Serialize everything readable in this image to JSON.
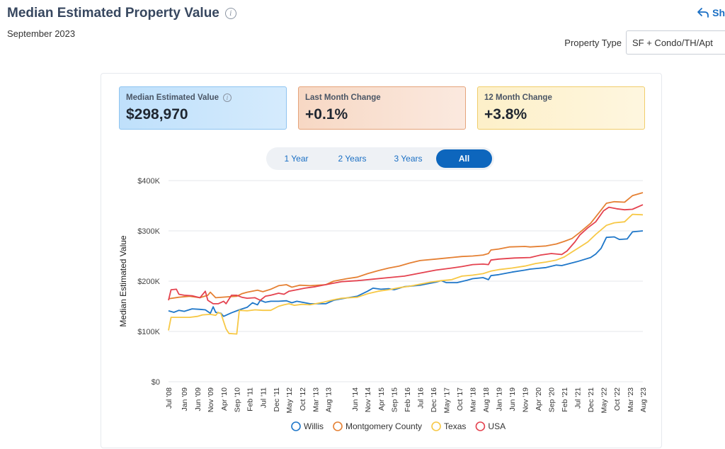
{
  "header": {
    "title": "Median Estimated Property Value",
    "info_icon": "i",
    "subtitle": "September 2023",
    "share_label": "Sh"
  },
  "property_type": {
    "label": "Property Type",
    "value": "SF + Condo/TH/Apt"
  },
  "cards": [
    {
      "label": "Median Estimated Value",
      "value": "$298,970"
    },
    {
      "label": "Last Month Change",
      "value": "+0.1%"
    },
    {
      "label": "12 Month Change",
      "value": "+3.8%"
    }
  ],
  "range_buttons": [
    "1 Year",
    "2 Years",
    "3 Years",
    "All"
  ],
  "active_range": "All",
  "chart_data": {
    "type": "line",
    "title": "Median Estimated Property Value",
    "ylabel": "Median Estimated Value",
    "xlabel": "",
    "ylim": [
      0,
      400000
    ],
    "y_ticks": [
      0,
      100000,
      200000,
      300000,
      400000
    ],
    "y_tick_labels": [
      "$0",
      "$100K",
      "$200K",
      "$300K",
      "$400K"
    ],
    "x_start": 2008.5,
    "x_end": 2023.58,
    "x_ticks": [
      {
        "label": "Jul '08",
        "x": 2008.5
      },
      {
        "label": "Jan '09",
        "x": 2009.0
      },
      {
        "label": "Jun '09",
        "x": 2009.42
      },
      {
        "label": "Nov '09",
        "x": 2009.83
      },
      {
        "label": "Apr '10",
        "x": 2010.25
      },
      {
        "label": "Sep '10",
        "x": 2010.67
      },
      {
        "label": "Feb '11",
        "x": 2011.08
      },
      {
        "label": "Jul '11",
        "x": 2011.5
      },
      {
        "label": "Dec '11",
        "x": 2011.92
      },
      {
        "label": "May '12",
        "x": 2012.33
      },
      {
        "label": "Oct '12",
        "x": 2012.75
      },
      {
        "label": "Mar '13",
        "x": 2013.17
      },
      {
        "label": "Aug '13",
        "x": 2013.58
      },
      {
        "label": "Jun '14",
        "x": 2014.42
      },
      {
        "label": "Nov '14",
        "x": 2014.83
      },
      {
        "label": "Apr '15",
        "x": 2015.25
      },
      {
        "label": "Sep '15",
        "x": 2015.67
      },
      {
        "label": "Feb '16",
        "x": 2016.08
      },
      {
        "label": "Jul '16",
        "x": 2016.5
      },
      {
        "label": "Dec '16",
        "x": 2016.92
      },
      {
        "label": "May '17",
        "x": 2017.33
      },
      {
        "label": "Oct '17",
        "x": 2017.75
      },
      {
        "label": "Mar '18",
        "x": 2018.17
      },
      {
        "label": "Aug '18",
        "x": 2018.58
      },
      {
        "label": "Jan '19",
        "x": 2019.0
      },
      {
        "label": "Jun '19",
        "x": 2019.42
      },
      {
        "label": "Nov '19",
        "x": 2019.83
      },
      {
        "label": "Apr '20",
        "x": 2020.25
      },
      {
        "label": "Sep '20",
        "x": 2020.67
      },
      {
        "label": "Feb '21",
        "x": 2021.08
      },
      {
        "label": "Jul '21",
        "x": 2021.5
      },
      {
        "label": "Dec '21",
        "x": 2021.92
      },
      {
        "label": "May '22",
        "x": 2022.33
      },
      {
        "label": "Oct '22",
        "x": 2022.75
      },
      {
        "label": "Mar '23",
        "x": 2023.17
      },
      {
        "label": "Aug '23",
        "x": 2023.58
      }
    ],
    "legend_position": "bottom",
    "series": [
      {
        "name": "Willis",
        "color": "#1f77c9",
        "points": [
          [
            2008.5,
            141000
          ],
          [
            2008.67,
            138000
          ],
          [
            2008.83,
            142000
          ],
          [
            2009.0,
            140000
          ],
          [
            2009.25,
            145000
          ],
          [
            2009.5,
            144000
          ],
          [
            2009.67,
            143000
          ],
          [
            2009.83,
            136000
          ],
          [
            2009.92,
            149000
          ],
          [
            2010.0,
            138000
          ],
          [
            2010.17,
            136000
          ],
          [
            2010.25,
            130000
          ],
          [
            2010.5,
            137000
          ],
          [
            2010.75,
            143000
          ],
          [
            2011.0,
            148000
          ],
          [
            2011.17,
            157000
          ],
          [
            2011.33,
            153000
          ],
          [
            2011.42,
            162000
          ],
          [
            2011.58,
            158000
          ],
          [
            2011.75,
            160000
          ],
          [
            2012.0,
            160000
          ],
          [
            2012.25,
            161000
          ],
          [
            2012.42,
            157000
          ],
          [
            2012.58,
            160000
          ],
          [
            2012.75,
            158000
          ],
          [
            2013.0,
            155000
          ],
          [
            2013.5,
            155000
          ],
          [
            2013.75,
            162000
          ],
          [
            2014.0,
            165000
          ],
          [
            2014.5,
            170000
          ],
          [
            2014.83,
            180000
          ],
          [
            2015.0,
            186000
          ],
          [
            2015.25,
            184000
          ],
          [
            2015.5,
            185000
          ],
          [
            2015.67,
            183000
          ],
          [
            2016.0,
            189000
          ],
          [
            2016.5,
            192000
          ],
          [
            2017.0,
            198000
          ],
          [
            2017.17,
            201000
          ],
          [
            2017.33,
            197000
          ],
          [
            2017.67,
            197000
          ],
          [
            2018.0,
            202000
          ],
          [
            2018.17,
            205000
          ],
          [
            2018.5,
            207000
          ],
          [
            2018.67,
            203000
          ],
          [
            2018.75,
            211000
          ],
          [
            2019.0,
            213000
          ],
          [
            2019.42,
            218000
          ],
          [
            2019.83,
            222000
          ],
          [
            2020.0,
            224000
          ],
          [
            2020.5,
            227000
          ],
          [
            2020.83,
            232000
          ],
          [
            2021.0,
            231000
          ],
          [
            2021.25,
            235000
          ],
          [
            2021.5,
            239000
          ],
          [
            2021.92,
            247000
          ],
          [
            2022.08,
            254000
          ],
          [
            2022.25,
            265000
          ],
          [
            2022.42,
            287000
          ],
          [
            2022.67,
            288000
          ],
          [
            2022.83,
            283000
          ],
          [
            2023.08,
            284000
          ],
          [
            2023.25,
            298000
          ],
          [
            2023.58,
            300000
          ]
        ]
      },
      {
        "name": "Montgomery County",
        "color": "#e58033",
        "points": [
          [
            2008.5,
            165000
          ],
          [
            2008.83,
            168000
          ],
          [
            2009.17,
            170000
          ],
          [
            2009.5,
            167000
          ],
          [
            2009.75,
            172000
          ],
          [
            2009.83,
            178000
          ],
          [
            2010.0,
            167000
          ],
          [
            2010.42,
            169000
          ],
          [
            2010.67,
            170000
          ],
          [
            2010.83,
            175000
          ],
          [
            2011.0,
            178000
          ],
          [
            2011.33,
            182000
          ],
          [
            2011.5,
            179000
          ],
          [
            2011.75,
            184000
          ],
          [
            2012.0,
            191000
          ],
          [
            2012.25,
            193000
          ],
          [
            2012.42,
            188000
          ],
          [
            2012.67,
            192000
          ],
          [
            2013.0,
            191000
          ],
          [
            2013.5,
            193000
          ],
          [
            2013.75,
            200000
          ],
          [
            2014.17,
            205000
          ],
          [
            2014.5,
            208000
          ],
          [
            2014.83,
            215000
          ],
          [
            2015.17,
            221000
          ],
          [
            2015.5,
            226000
          ],
          [
            2015.83,
            230000
          ],
          [
            2016.17,
            236000
          ],
          [
            2016.5,
            241000
          ],
          [
            2017.0,
            244000
          ],
          [
            2017.5,
            247000
          ],
          [
            2017.83,
            249000
          ],
          [
            2018.17,
            250000
          ],
          [
            2018.5,
            252000
          ],
          [
            2018.67,
            255000
          ],
          [
            2018.75,
            262000
          ],
          [
            2019.0,
            264000
          ],
          [
            2019.33,
            268000
          ],
          [
            2019.83,
            269000
          ],
          [
            2020.0,
            268000
          ],
          [
            2020.5,
            270000
          ],
          [
            2020.83,
            274000
          ],
          [
            2021.08,
            279000
          ],
          [
            2021.33,
            285000
          ],
          [
            2021.58,
            297000
          ],
          [
            2021.92,
            315000
          ],
          [
            2022.17,
            335000
          ],
          [
            2022.42,
            355000
          ],
          [
            2022.67,
            358000
          ],
          [
            2023.0,
            357000
          ],
          [
            2023.25,
            370000
          ],
          [
            2023.58,
            376000
          ]
        ]
      },
      {
        "name": "Texas",
        "color": "#f7c845",
        "points": [
          [
            2008.5,
            102000
          ],
          [
            2008.58,
            128000
          ],
          [
            2008.83,
            128000
          ],
          [
            2009.17,
            128000
          ],
          [
            2009.42,
            130000
          ],
          [
            2009.58,
            133000
          ],
          [
            2009.83,
            134000
          ],
          [
            2010.0,
            132000
          ],
          [
            2010.08,
            138000
          ],
          [
            2010.17,
            135000
          ],
          [
            2010.33,
            105000
          ],
          [
            2010.42,
            96000
          ],
          [
            2010.67,
            95000
          ],
          [
            2010.75,
            142000
          ],
          [
            2011.0,
            141000
          ],
          [
            2011.25,
            143000
          ],
          [
            2011.5,
            142000
          ],
          [
            2011.75,
            142000
          ],
          [
            2012.0,
            150000
          ],
          [
            2012.17,
            153000
          ],
          [
            2012.33,
            155000
          ],
          [
            2012.5,
            152000
          ],
          [
            2012.75,
            154000
          ],
          [
            2013.0,
            153000
          ],
          [
            2013.42,
            158000
          ],
          [
            2013.75,
            163000
          ],
          [
            2014.0,
            166000
          ],
          [
            2014.5,
            168000
          ],
          [
            2014.83,
            175000
          ],
          [
            2015.17,
            180000
          ],
          [
            2015.5,
            183000
          ],
          [
            2015.83,
            187000
          ],
          [
            2016.17,
            190000
          ],
          [
            2016.5,
            194000
          ],
          [
            2016.83,
            198000
          ],
          [
            2017.17,
            201000
          ],
          [
            2017.5,
            203000
          ],
          [
            2017.83,
            210000
          ],
          [
            2018.17,
            212000
          ],
          [
            2018.5,
            215000
          ],
          [
            2018.75,
            220000
          ],
          [
            2019.0,
            223000
          ],
          [
            2019.42,
            226000
          ],
          [
            2019.83,
            230000
          ],
          [
            2020.17,
            235000
          ],
          [
            2020.5,
            238000
          ],
          [
            2020.83,
            242000
          ],
          [
            2021.08,
            248000
          ],
          [
            2021.33,
            258000
          ],
          [
            2021.58,
            268000
          ],
          [
            2021.83,
            278000
          ],
          [
            2022.08,
            293000
          ],
          [
            2022.42,
            311000
          ],
          [
            2022.67,
            316000
          ],
          [
            2023.0,
            318000
          ],
          [
            2023.25,
            333000
          ],
          [
            2023.58,
            332000
          ]
        ]
      },
      {
        "name": "USA",
        "color": "#e4424f",
        "points": [
          [
            2008.5,
            162000
          ],
          [
            2008.58,
            183000
          ],
          [
            2008.75,
            184000
          ],
          [
            2008.83,
            174000
          ],
          [
            2009.0,
            172000
          ],
          [
            2009.25,
            171000
          ],
          [
            2009.5,
            167000
          ],
          [
            2009.67,
            180000
          ],
          [
            2009.75,
            162000
          ],
          [
            2009.92,
            155000
          ],
          [
            2010.08,
            155000
          ],
          [
            2010.25,
            160000
          ],
          [
            2010.33,
            155000
          ],
          [
            2010.5,
            172000
          ],
          [
            2010.67,
            172000
          ],
          [
            2010.83,
            168000
          ],
          [
            2011.0,
            166000
          ],
          [
            2011.25,
            167000
          ],
          [
            2011.42,
            162000
          ],
          [
            2011.58,
            170000
          ],
          [
            2011.75,
            172000
          ],
          [
            2012.0,
            176000
          ],
          [
            2012.17,
            174000
          ],
          [
            2012.33,
            180000
          ],
          [
            2012.58,
            183000
          ],
          [
            2012.83,
            186000
          ],
          [
            2013.17,
            189000
          ],
          [
            2013.58,
            194000
          ],
          [
            2014.0,
            199000
          ],
          [
            2014.5,
            201000
          ],
          [
            2015.0,
            204000
          ],
          [
            2015.5,
            207000
          ],
          [
            2016.0,
            210000
          ],
          [
            2016.5,
            216000
          ],
          [
            2017.0,
            222000
          ],
          [
            2017.5,
            226000
          ],
          [
            2017.83,
            229000
          ],
          [
            2018.17,
            233000
          ],
          [
            2018.5,
            234000
          ],
          [
            2018.67,
            233000
          ],
          [
            2018.75,
            242000
          ],
          [
            2019.0,
            244000
          ],
          [
            2019.5,
            246000
          ],
          [
            2020.0,
            247000
          ],
          [
            2020.33,
            252000
          ],
          [
            2020.67,
            255000
          ],
          [
            2021.0,
            253000
          ],
          [
            2021.17,
            260000
          ],
          [
            2021.42,
            278000
          ],
          [
            2021.58,
            292000
          ],
          [
            2021.83,
            306000
          ],
          [
            2022.08,
            318000
          ],
          [
            2022.33,
            340000
          ],
          [
            2022.5,
            347000
          ],
          [
            2022.75,
            344000
          ],
          [
            2023.0,
            342000
          ],
          [
            2023.25,
            343000
          ],
          [
            2023.58,
            352000
          ]
        ]
      }
    ]
  }
}
